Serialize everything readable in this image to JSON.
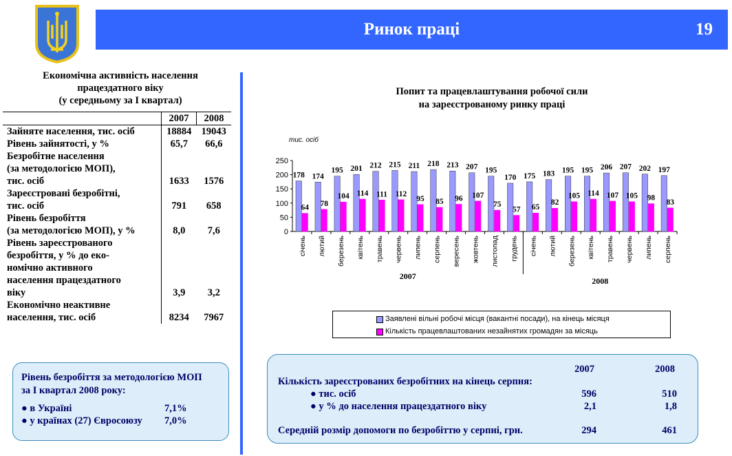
{
  "header": {
    "title": "Ринок праці",
    "page_number": "19"
  },
  "colors": {
    "accent": "#3366ff",
    "box_bg": "#ddeefa",
    "series1": "#9999ff",
    "series2": "#ff00ff"
  },
  "left_table": {
    "title_lines": [
      "Економічна активність населення",
      "працездатного віку",
      "(у середньому за І квартал)"
    ],
    "years": [
      "2007",
      "2008"
    ],
    "rows": [
      {
        "label_lines": [
          "Зайняте населення, тис. осіб"
        ],
        "v2007": "18884",
        "v2008": "19043"
      },
      {
        "label_lines": [
          "Рівень зайнятості, у %"
        ],
        "v2007": "65,7",
        "v2008": "66,6"
      },
      {
        "label_lines": [
          "Безробітне населення",
          "(за методологією МОП),",
          "тис. осіб"
        ],
        "v2007": "1633",
        "v2008": "1576"
      },
      {
        "label_lines": [
          "Зареєстровані безробітні,",
          "тис. осіб"
        ],
        "v2007": "791",
        "v2008": "658"
      },
      {
        "label_lines": [
          "Рівень безробіття",
          "(за методологією МОП), у %"
        ],
        "v2007": "8,0",
        "v2008": "7,6"
      },
      {
        "label_lines": [
          "Рівень зареєстрованого",
          "безробіття, у % до еко-",
          "номічно активного",
          "населення працездатного",
          "віку"
        ],
        "v2007": "3,9",
        "v2008": "3,2"
      },
      {
        "label_lines": [
          "Економічно неактивне",
          "населення, тис. осіб"
        ],
        "v2007": "8234",
        "v2008": "7967"
      }
    ]
  },
  "box_left": {
    "title_lines": [
      "Рівень безробіття за методологією МОП",
      "за  І квартал 2008 року:"
    ],
    "items": [
      {
        "label": "● в Україні",
        "value": "7,1%"
      },
      {
        "label": "● у країнах (27) Євросоюзу",
        "value": "7,0%"
      }
    ]
  },
  "chart_data": {
    "type": "bar",
    "title_lines": [
      "Попит та  працевлаштування робочої сили",
      "на зареєстрованому ринку праці"
    ],
    "ylabel": "тис. осіб",
    "ylim": [
      0,
      250
    ],
    "yticks": [
      "0",
      "50",
      "100",
      "150",
      "200",
      "250"
    ],
    "ytick_values": [
      0,
      50,
      100,
      150,
      200,
      250
    ],
    "categories": [
      "січень",
      "лютий",
      "березень",
      "квітень",
      "травень",
      "червень",
      "липень",
      "серпень",
      "вересень",
      "жовтень",
      "листопад",
      "грудень",
      "січень",
      "лютий",
      "березень",
      "квітень",
      "травень",
      "червень",
      "липень",
      "серпень"
    ],
    "groups": [
      {
        "label": "2007",
        "count": 12
      },
      {
        "label": "2008",
        "count": 8
      }
    ],
    "series": [
      {
        "name": "Заявлені вільні робочі місця (вакантні посади), на кінець місяця",
        "color": "#9999ff",
        "values": [
          178,
          174,
          195,
          201,
          212,
          215,
          211,
          218,
          213,
          207,
          195,
          170,
          175,
          183,
          195,
          195,
          206,
          207,
          202,
          197
        ]
      },
      {
        "name": "Кількість працевлаштованих незайнятих громадян за місяць",
        "color": "#ff00ff",
        "values": [
          64,
          78,
          104,
          114,
          111,
          112,
          95,
          85,
          96,
          107,
          75,
          57,
          65,
          82,
          105,
          114,
          107,
          105,
          98,
          83
        ]
      }
    ]
  },
  "box_right": {
    "years": [
      "2007",
      "2008"
    ],
    "heading": "Кількість зареєстрованих безробітних на кінець серпня:",
    "rows": [
      {
        "label": "● тис. осіб",
        "v2007": "596",
        "v2008": "510"
      },
      {
        "label": "● у % до населення працездатного віку",
        "v2007": "2,1",
        "v2008": "1,8"
      }
    ],
    "benefit": {
      "label": "Середній розмір допомоги по безробіттю у серпні, грн.",
      "v2007": "294",
      "v2008": "461"
    }
  }
}
